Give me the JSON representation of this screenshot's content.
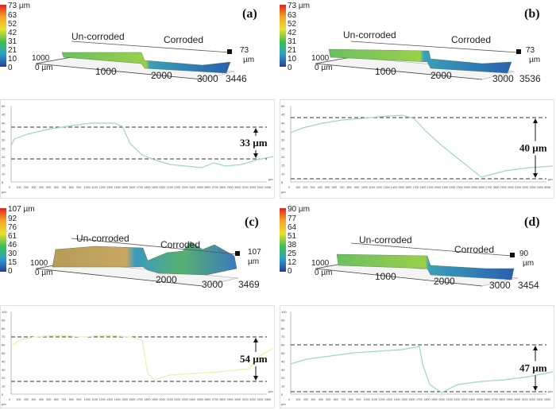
{
  "panels": [
    {
      "letter": "(a)",
      "scale": {
        "unit": "73 µm",
        "ticks": [
          "63",
          "52",
          "42",
          "31",
          "21",
          "10",
          "0"
        ]
      },
      "uncorroded": "Un-corroded",
      "corroded": "Corroded",
      "height_label": "73",
      "height_unit": "µm",
      "y_axis": "1000",
      "origin": "0 µm",
      "x_axis": [
        "1000",
        "2000",
        "3000"
      ],
      "x_end": "3446",
      "depth_label": "33 µm",
      "profile_color": "#9cd8c4"
    },
    {
      "letter": "(b)",
      "scale": {
        "unit": "73 µm",
        "ticks": [
          "63",
          "52",
          "42",
          "31",
          "21",
          "10",
          "0"
        ]
      },
      "uncorroded": "Un-corroded",
      "corroded": "Corroded",
      "height_label": "73",
      "height_unit": "µm",
      "y_axis": "1000",
      "origin": "0 µm",
      "x_axis": [
        "1000",
        "2000",
        "3000"
      ],
      "x_end": "3536",
      "depth_label": "40 µm",
      "profile_color": "#9cd8c4"
    },
    {
      "letter": "(c)",
      "scale": {
        "unit": "107 µm",
        "ticks": [
          "92",
          "76",
          "61",
          "46",
          "30",
          "15",
          "0"
        ]
      },
      "uncorroded": "Un-corroded",
      "corroded": "Corroded",
      "height_label": "107",
      "height_unit": "µm",
      "y_axis": "1000",
      "origin": "0 µm",
      "x_axis": [
        "2000",
        "3000"
      ],
      "x_end": "3469",
      "depth_label": "54 µm",
      "profile_color": "#f4ecaa"
    },
    {
      "letter": "(d)",
      "scale": {
        "unit": "90 µm",
        "ticks": [
          "77",
          "64",
          "51",
          "38",
          "25",
          "12",
          "0"
        ]
      },
      "uncorroded": "Un-corroded",
      "corroded": "Corroded",
      "height_label": "90",
      "height_unit": "µm",
      "y_axis": "1000",
      "origin": "0 µm",
      "x_axis": [
        "1000",
        "2000",
        "3000"
      ],
      "x_end": "3454",
      "depth_label": "47 µm",
      "profile_color": "#9cd8c4"
    }
  ],
  "profiles": [
    {
      "y_ticks": [
        "50",
        "45",
        "40",
        "35",
        "30",
        "25",
        "20",
        "15",
        "10",
        "5"
      ],
      "x_ticks": [
        "0",
        "100",
        "200",
        "300",
        "400",
        "500",
        "600",
        "700",
        "800",
        "900",
        "1000",
        "1100",
        "1200",
        "1300",
        "1400",
        "1500",
        "1600",
        "1700",
        "1800",
        "1900",
        "2000",
        "2100",
        "2200",
        "2300",
        "2400",
        "2500",
        "2600",
        "2700",
        "2800",
        "2900",
        "3000",
        "3100",
        "3200",
        "3300",
        "3446"
      ],
      "unit_y": "µm",
      "unit_x": "µm"
    },
    {
      "y_ticks": [
        "50",
        "45",
        "40",
        "35",
        "30",
        "25",
        "20",
        "15",
        "10",
        "5"
      ],
      "x_ticks": [
        "0",
        "100",
        "200",
        "300",
        "400",
        "500",
        "600",
        "700",
        "800",
        "900",
        "1000",
        "1100",
        "1200",
        "1300",
        "1400",
        "1500",
        "1600",
        "1700",
        "1800",
        "1900",
        "2000",
        "2100",
        "2200",
        "2300",
        "2400",
        "2500",
        "2600",
        "2700",
        "2800",
        "2900",
        "3000",
        "3100",
        "3200",
        "3300",
        "3400",
        "3536"
      ],
      "unit_y": "µm",
      "unit_x": "µm"
    },
    {
      "y_ticks": [
        "100",
        "90",
        "80",
        "70",
        "60",
        "50",
        "40",
        "30",
        "20",
        "10",
        "0"
      ],
      "x_ticks": [
        "0",
        "100",
        "200",
        "300",
        "400",
        "500",
        "600",
        "700",
        "800",
        "900",
        "1000",
        "1100",
        "1200",
        "1300",
        "1400",
        "1500",
        "1600",
        "1700",
        "1800",
        "1900",
        "2000",
        "2100",
        "2200",
        "2300",
        "2400",
        "2500",
        "2600",
        "2700",
        "2800",
        "2900",
        "3000",
        "3100",
        "3200",
        "3300",
        "3469"
      ],
      "unit_y": "µm",
      "unit_x": "µm"
    },
    {
      "y_ticks": [
        "100",
        "90",
        "80",
        "70",
        "60",
        "50",
        "40",
        "30",
        "20",
        "10",
        "0"
      ],
      "x_ticks": [
        "0",
        "100",
        "200",
        "300",
        "400",
        "500",
        "600",
        "700",
        "800",
        "900",
        "1000",
        "1100",
        "1200",
        "1300",
        "1400",
        "1500",
        "1600",
        "1700",
        "1800",
        "1900",
        "2000",
        "2100",
        "2200",
        "2300",
        "2400",
        "2500",
        "2600",
        "2700",
        "2800",
        "2900",
        "3000",
        "3100",
        "3200",
        "3300",
        "3454"
      ],
      "unit_y": "µm",
      "unit_x": "µm"
    }
  ]
}
